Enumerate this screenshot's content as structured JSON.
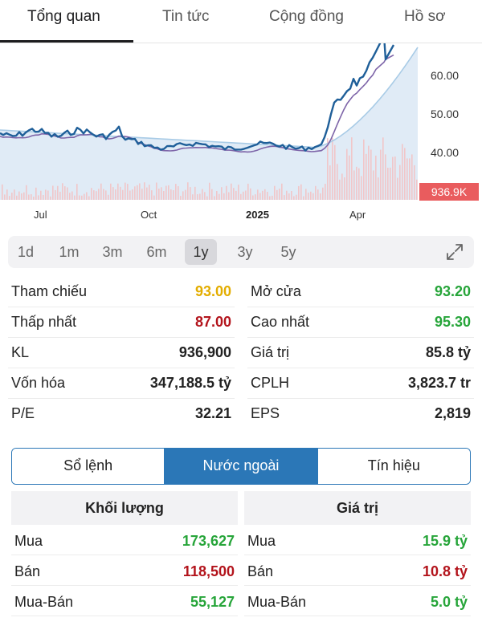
{
  "tabs": [
    {
      "label": "Tổng quan",
      "active": true
    },
    {
      "label": "Tin tức",
      "active": false
    },
    {
      "label": "Cộng đồng",
      "active": false
    },
    {
      "label": "Hồ sơ",
      "active": false
    }
  ],
  "chart": {
    "price_labels": [
      "60.00",
      "50.00",
      "40.00"
    ],
    "volume_badge": "936.9K",
    "x_labels": [
      "Jul",
      "Oct",
      "2025",
      "Apr"
    ],
    "colors": {
      "price": "#1f5f99",
      "ma_fast": "#7d64a8",
      "ma_slow": "#a8cbe6",
      "area": "#dbe8f4",
      "volume": "#f1c6c9",
      "badge": "#e95c5e"
    }
  },
  "periods": {
    "items": [
      "1d",
      "1m",
      "3m",
      "6m",
      "1y",
      "3y",
      "5y"
    ],
    "selected": "1y"
  },
  "stats": [
    {
      "label": "Tham chiếu",
      "value": "93.00",
      "color": "yellow"
    },
    {
      "label": "Mở cửa",
      "value": "93.20",
      "color": "green"
    },
    {
      "label": "Thấp nhất",
      "value": "87.00",
      "color": "red"
    },
    {
      "label": "Cao nhất",
      "value": "95.30",
      "color": "green"
    },
    {
      "label": "KL",
      "value": "936,900",
      "color": "default"
    },
    {
      "label": "Giá trị",
      "value": "85.8 tỷ",
      "color": "default"
    },
    {
      "label": "Vốn hóa",
      "value": "347,188.5 tỷ",
      "color": "default"
    },
    {
      "label": "CPLH",
      "value": "3,823.7 tr",
      "color": "default"
    },
    {
      "label": "P/E",
      "value": "32.21",
      "color": "default"
    },
    {
      "label": "EPS",
      "value": "2,819",
      "color": "default"
    }
  ],
  "segmented": {
    "items": [
      "Sổ lệnh",
      "Nước ngoài",
      "Tín hiệu"
    ],
    "selected": "Nước ngoài"
  },
  "foreign": {
    "volume": {
      "title": "Khối lượng",
      "rows": [
        {
          "label": "Mua",
          "value": "173,627",
          "color": "green"
        },
        {
          "label": "Bán",
          "value": "118,500",
          "color": "red"
        },
        {
          "label": "Mua-Bán",
          "value": "55,127",
          "color": "green"
        }
      ]
    },
    "value": {
      "title": "Giá trị",
      "rows": [
        {
          "label": "Mua",
          "value": "15.9 tỷ",
          "color": "green"
        },
        {
          "label": "Bán",
          "value": "10.8 tỷ",
          "color": "red"
        },
        {
          "label": "Mua-Bán",
          "value": "5.0 tỷ",
          "color": "green"
        }
      ]
    }
  }
}
